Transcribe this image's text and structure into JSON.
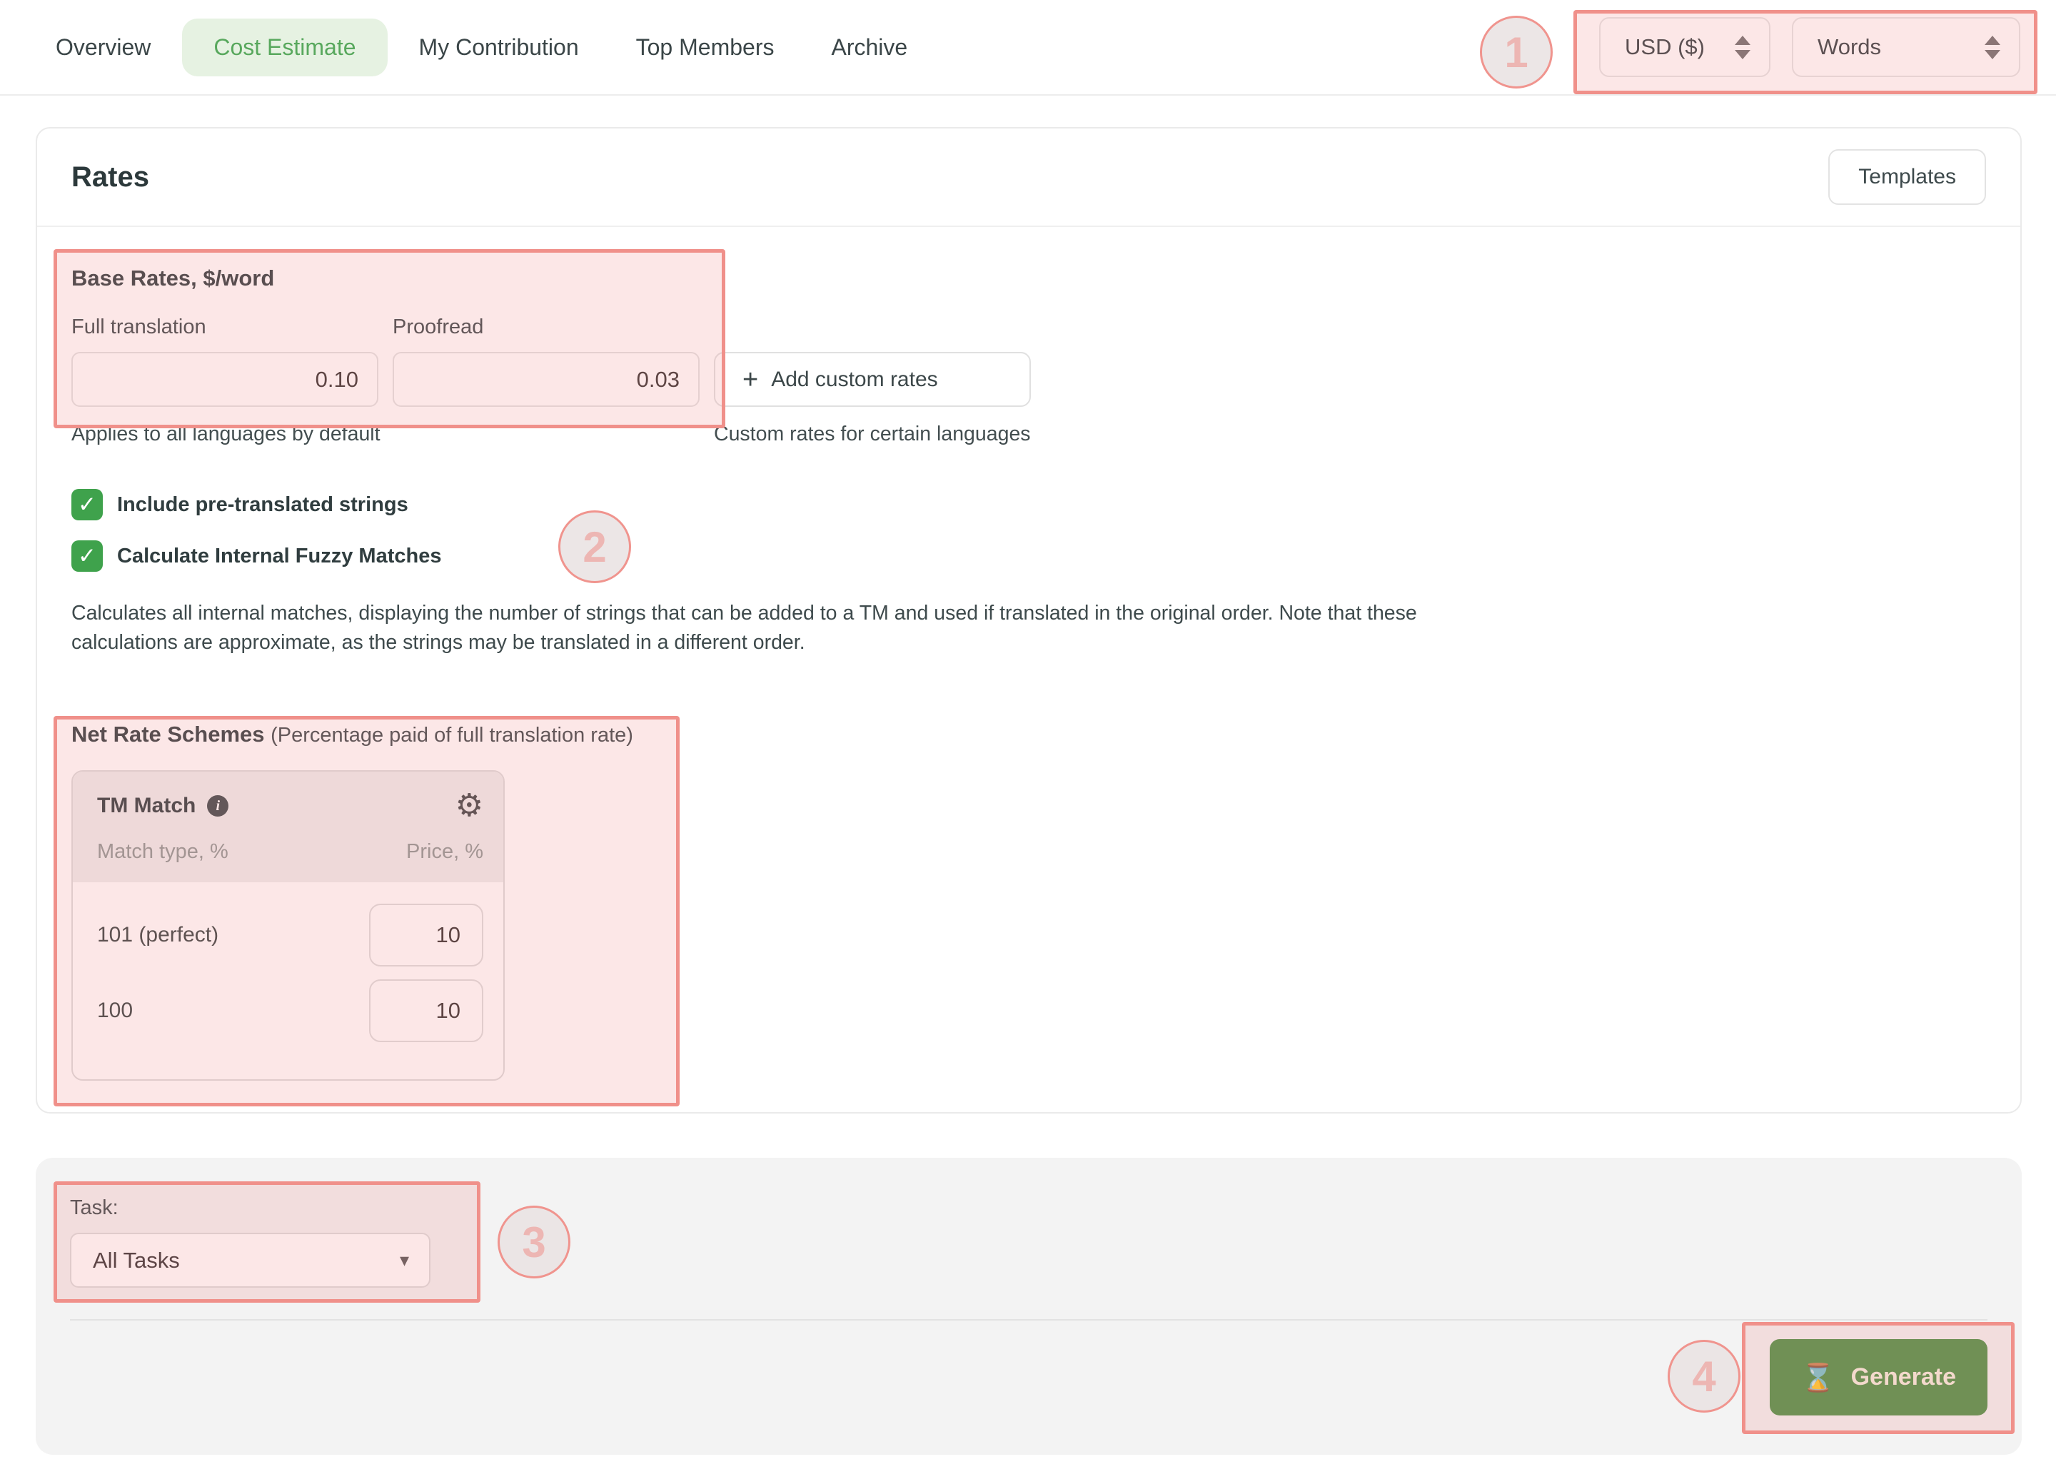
{
  "nav": {
    "tabs": [
      {
        "label": "Overview",
        "active": false
      },
      {
        "label": "Cost Estimate",
        "active": true
      },
      {
        "label": "My Contribution",
        "active": false
      },
      {
        "label": "Top Members",
        "active": false
      },
      {
        "label": "Archive",
        "active": false
      }
    ],
    "currency_select": "USD ($)",
    "units_select": "Words"
  },
  "rates_card": {
    "title": "Rates",
    "templates_button": "Templates",
    "base_rates": {
      "heading": "Base Rates, $/word",
      "fields": [
        {
          "label": "Full translation",
          "value": "0.10"
        },
        {
          "label": "Proofread",
          "value": "0.03"
        }
      ],
      "helper": "Applies to all languages by default"
    },
    "custom_rates": {
      "button_label": "Add custom rates",
      "helper": "Custom rates for certain languages"
    },
    "checkboxes": [
      {
        "label": "Include pre-translated strings",
        "checked": true
      },
      {
        "label": "Calculate Internal Fuzzy Matches",
        "checked": true
      }
    ],
    "fuzzy_note": "Calculates all internal matches, displaying the number of strings that can be added to a TM and used if translated in the original order. Note that these calculations are approximate, as the strings may be translated in a different order.",
    "net_rate_schemes": {
      "heading": "Net Rate Schemes",
      "subheading": "(Percentage paid of full translation rate)",
      "tm_match": {
        "title": "TM Match",
        "col_left": "Match type, %",
        "col_right": "Price, %",
        "rows": [
          {
            "label": "101 (perfect)",
            "value": "10"
          },
          {
            "label": "100",
            "value": "10"
          }
        ]
      }
    }
  },
  "footer": {
    "task_label": "Task:",
    "task_value": "All Tasks",
    "generate_label": "Generate"
  },
  "annotations": {
    "n1": "1",
    "n2": "2",
    "n3": "3",
    "n4": "4"
  },
  "icons": {
    "plus": "+",
    "check": "✓",
    "info": "i",
    "gear": "⚙",
    "hourglass": "⌛",
    "caret_down": "▾"
  },
  "colors": {
    "accent_green": "#58a85d",
    "active_tab_bg": "#e6f2e2",
    "checkbox_green": "#3fa24c",
    "generate_green": "#4c9044",
    "annotation_red": "#f0908a",
    "panel_gray": "#f3f3f3"
  }
}
